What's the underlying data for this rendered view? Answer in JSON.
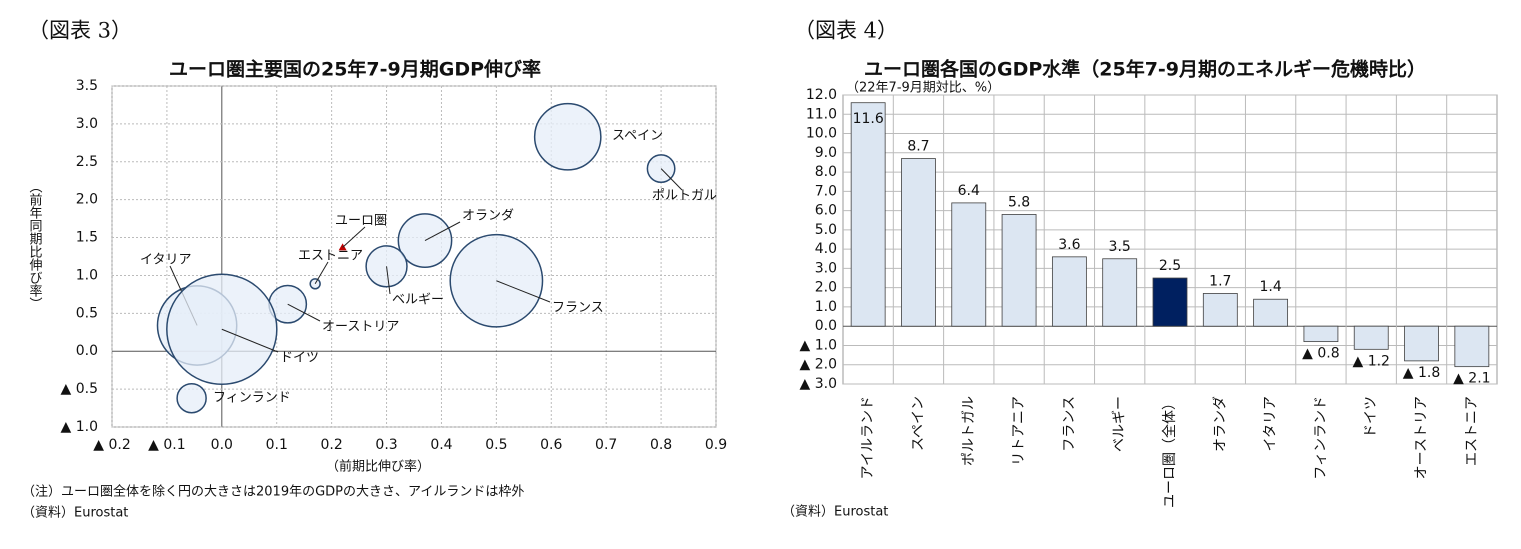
{
  "chart_data": [
    {
      "type": "bubble",
      "figure_label": "（図表 3）",
      "title": "ユーロ圏主要国の25年7-9月期GDP伸び率",
      "x_label": "（前期比伸び率）",
      "y_label": "（前年同期比伸び率）",
      "note": "（注）ユーロ圏全体を除く円の大きさは2019年のGDPの大きさ、アイルランドは枠外",
      "source": "（資料）Eurostat",
      "labels": [
        "スペイン",
        "ポルトガル",
        "オランダ",
        "ユーロ圏",
        "エストニア",
        "ベルギー",
        "イタリア",
        "フランス",
        "オーストリア",
        "ドイツ",
        "フィンランド"
      ],
      "x": [
        0.63,
        0.8,
        0.37,
        0.22,
        0.17,
        0.3,
        -0.045,
        0.5,
        0.12,
        0.0,
        -0.055
      ],
      "values": [
        2.83,
        2.41,
        1.46,
        1.37,
        0.89,
        1.12,
        0.34,
        0.93,
        0.62,
        0.29,
        -0.62
      ],
      "sizes": [
        1250,
        214,
        810,
        null,
        28,
        476,
        1790,
        2430,
        398,
        3450,
        240
      ],
      "color": "#e6eef8",
      "edge_color": "#2b4a6f",
      "highlight_color": "#c00000",
      "xlim": [
        -0.2,
        0.9
      ],
      "xticks": [
        {
          "value": -0.2,
          "label": "▲ 0.2"
        },
        {
          "value": -0.1,
          "label": "▲ 0.1"
        },
        {
          "value": 0,
          "label": "0.0"
        },
        0.1,
        0.2,
        0.3,
        0.4,
        0.5,
        0.6,
        0.7,
        0.8,
        0.9
      ],
      "ylim": [
        -1.0,
        3.5
      ],
      "yticks": [
        {
          "value": -1.0,
          "label": "▲ 1.0"
        },
        {
          "value": -0.5,
          "label": "▲ 0.5"
        },
        {
          "value": 0,
          "label": "0.0"
        },
        0.5,
        {
          "value": 1.0,
          "label": "1.0"
        },
        1.5,
        {
          "value": 2.0,
          "label": "2.0"
        },
        2.5,
        {
          "value": 3.0,
          "label": "3.0"
        },
        3.5
      ],
      "grid": true
    },
    {
      "type": "bar",
      "figure_label": "（図表 4）",
      "title": "ユーロ圏各国のGDP水準（25年7-9月期のエネルギー危機時比）",
      "subtitle": "（22年7-9月期対比、%）",
      "source": "（資料）Eurostat",
      "categories": [
        "アイルランド",
        "スペイン",
        "ポルトガル",
        "リトアニア",
        "フランス",
        "ベルギー",
        "ユーロ圏（全体）",
        "オランダ",
        "イタリア",
        "フィンランド",
        "ドイツ",
        "オーストリア",
        "エストニア"
      ],
      "values": [
        11.6,
        8.7,
        6.4,
        5.8,
        3.6,
        3.5,
        2.5,
        1.7,
        1.4,
        -0.8,
        -1.2,
        -1.8,
        -2.1
      ],
      "value_labels": [
        "11.6",
        "8.7",
        "6.4",
        "5.8",
        "3.6",
        "3.5",
        "2.5",
        "1.7",
        "1.4",
        "▲ 0.8",
        "▲ 1.2",
        "▲ 1.8",
        "▲ 2.1"
      ],
      "colors": [
        "#dce6f2",
        "#dce6f2",
        "#dce6f2",
        "#dce6f2",
        "#dce6f2",
        "#dce6f2",
        "#002060",
        "#dce6f2",
        "#dce6f2",
        "#dce6f2",
        "#dce6f2",
        "#dce6f2",
        "#dce6f2"
      ],
      "edge_color": "#404040",
      "ylim": [
        -3.0,
        12.0
      ],
      "yticks": [
        {
          "value": -3,
          "label": "▲ 3.0"
        },
        {
          "value": -2,
          "label": "▲ 2.0"
        },
        {
          "value": -1,
          "label": "▲ 1.0"
        },
        {
          "value": 0,
          "label": "0.0"
        },
        {
          "value": 1,
          "label": "1.0"
        },
        {
          "value": 2,
          "label": "2.0"
        },
        {
          "value": 3,
          "label": "3.0"
        },
        {
          "value": 4,
          "label": "4.0"
        },
        {
          "value": 5,
          "label": "5.0"
        },
        {
          "value": 6,
          "label": "6.0"
        },
        {
          "value": 7,
          "label": "7.0"
        },
        {
          "value": 8,
          "label": "8.0"
        },
        {
          "value": 9,
          "label": "9.0"
        },
        {
          "value": 10,
          "label": "10.0"
        },
        {
          "value": 11,
          "label": "11.0"
        },
        {
          "value": 12,
          "label": "12.0"
        }
      ],
      "grid": true
    }
  ]
}
